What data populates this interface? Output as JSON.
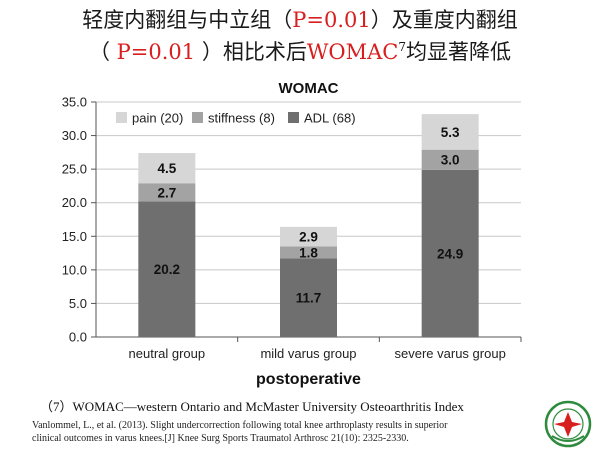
{
  "slide": {
    "title_line1_a": "轻度内翻组与中立组（",
    "title_line1_p": "P=0.01",
    "title_line1_b": "）及重度内翻组",
    "title_line2_a": "（ ",
    "title_line2_p": "P=0.01",
    "title_line2_b": " ）相比术后",
    "title_line2_womac": "WOMAC",
    "title_line2_sup": "7",
    "title_line2_c": "均显著降低",
    "footnote": "（7）WOMAC—western Ontario and McMaster University Osteoarthritis Index",
    "reference_line1": "Vanlommel, L., et al. (2013). Slight undercorrection following total knee arthroplasty results in superior",
    "reference_line2": "clinical outcomes in varus knees.[J] Knee Surg Sports Traumatol Arthrosc 21(10): 2325-2330."
  },
  "chart_data": {
    "type": "bar",
    "stacked": true,
    "title": "WOMAC",
    "xlabel": "postoperative",
    "ylabel": "",
    "ylim": [
      0,
      35
    ],
    "yticks": [
      "0.0",
      "5.0",
      "10.0",
      "15.0",
      "20.0",
      "25.0",
      "30.0",
      "35.0"
    ],
    "grid": true,
    "legend_position": "top-left",
    "categories": [
      "neutral group",
      "mild varus group",
      "severe varus group"
    ],
    "series": [
      {
        "name": "ADL (68)",
        "values": [
          20.2,
          11.7,
          24.9
        ],
        "labels": [
          "20.2",
          "11.7",
          "24.9"
        ],
        "color": "#6f6f6f"
      },
      {
        "name": "stiffness (8)",
        "values": [
          2.7,
          1.8,
          3.0
        ],
        "labels": [
          "2.7",
          "1.8",
          "3.0"
        ],
        "color": "#a3a3a3"
      },
      {
        "name": "pain (20)",
        "values": [
          4.5,
          2.9,
          5.3
        ],
        "labels": [
          "4.5",
          "2.9",
          "5.3"
        ],
        "color": "#d6d6d6"
      }
    ],
    "legend_order": [
      2,
      1,
      0
    ]
  }
}
